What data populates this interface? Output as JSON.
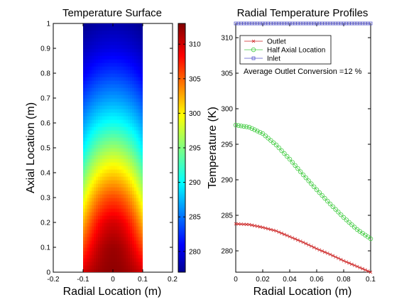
{
  "chart_data": [
    {
      "type": "heatmap",
      "title": "Temperature Surface",
      "xlabel": "Radial Location (m)",
      "ylabel": "Axial Location (m)",
      "xlim": [
        -0.2,
        0.2
      ],
      "ylim": [
        0,
        1
      ],
      "x_ticks": [
        "-0.2",
        "-0.1",
        "0",
        "0.1",
        "0.2"
      ],
      "y_ticks": [
        "0",
        "0.1",
        "0.2",
        "0.3",
        "0.4",
        "0.5",
        "0.6",
        "0.7",
        "0.8",
        "0.9",
        "1"
      ],
      "surface_x_range": [
        -0.1,
        0.1
      ],
      "colormap": "jet",
      "colorbar": {
        "range": [
          277,
          313
        ],
        "ticks": [
          "280",
          "285",
          "290",
          "295",
          "300",
          "305",
          "310"
        ]
      },
      "centerline_temperature": [
        {
          "z": 0.0,
          "T": 312.5
        },
        {
          "z": 0.1,
          "T": 312
        },
        {
          "z": 0.2,
          "T": 310
        },
        {
          "z": 0.3,
          "T": 306
        },
        {
          "z": 0.4,
          "T": 301
        },
        {
          "z": 0.5,
          "T": 296
        },
        {
          "z": 0.6,
          "T": 291
        },
        {
          "z": 0.7,
          "T": 287
        },
        {
          "z": 0.8,
          "T": 283.5
        },
        {
          "z": 0.9,
          "T": 280.5
        },
        {
          "z": 1.0,
          "T": 278.5
        }
      ],
      "wall_temperature": [
        {
          "z": 0.0,
          "T": 310
        },
        {
          "z": 0.1,
          "T": 306
        },
        {
          "z": 0.2,
          "T": 302
        },
        {
          "z": 0.3,
          "T": 298
        },
        {
          "z": 0.4,
          "T": 294
        },
        {
          "z": 0.5,
          "T": 290
        },
        {
          "z": 0.6,
          "T": 287
        },
        {
          "z": 0.7,
          "T": 284
        },
        {
          "z": 0.8,
          "T": 281
        },
        {
          "z": 0.9,
          "T": 279
        },
        {
          "z": 1.0,
          "T": 277.5
        }
      ]
    },
    {
      "type": "line",
      "title": "Radial Temperature Profiles",
      "xlabel": "Radial Location (m)",
      "ylabel": "Temperature (K)",
      "xlim": [
        0,
        0.1
      ],
      "ylim": [
        277,
        312
      ],
      "x_ticks": [
        "0",
        "0.02",
        "0.04",
        "0.06",
        "0.08",
        "0.1"
      ],
      "y_ticks": [
        "280",
        "285",
        "290",
        "295",
        "300",
        "305",
        "310"
      ],
      "annotation": "Average Outlet Conversion =12 %",
      "annotation_color": "#cc33cc",
      "legend_position": "top-left",
      "series": [
        {
          "name": "Outlet",
          "color": "#cc2222",
          "marker": "x",
          "x": [
            0,
            0.01,
            0.02,
            0.03,
            0.04,
            0.05,
            0.06,
            0.07,
            0.08,
            0.09,
            0.1
          ],
          "values": [
            283.8,
            283.7,
            283.3,
            282.8,
            282.0,
            281.2,
            280.3,
            279.5,
            278.6,
            277.8,
            277.0
          ]
        },
        {
          "name": "Half Axial Location",
          "color": "#44cc44",
          "marker": "o",
          "x": [
            0,
            0.01,
            0.02,
            0.03,
            0.04,
            0.05,
            0.06,
            0.07,
            0.08,
            0.09,
            0.1
          ],
          "values": [
            297.7,
            297.4,
            296.5,
            294.9,
            292.9,
            290.7,
            288.6,
            286.6,
            284.7,
            283.0,
            281.7
          ]
        },
        {
          "name": "Inlet",
          "color": "#5555cc",
          "marker": "square",
          "x": [
            0,
            0.01,
            0.02,
            0.03,
            0.04,
            0.05,
            0.06,
            0.07,
            0.08,
            0.09,
            0.1
          ],
          "values": [
            312,
            312,
            312,
            312,
            312,
            312,
            312,
            312,
            312,
            312,
            312
          ]
        }
      ]
    }
  ]
}
